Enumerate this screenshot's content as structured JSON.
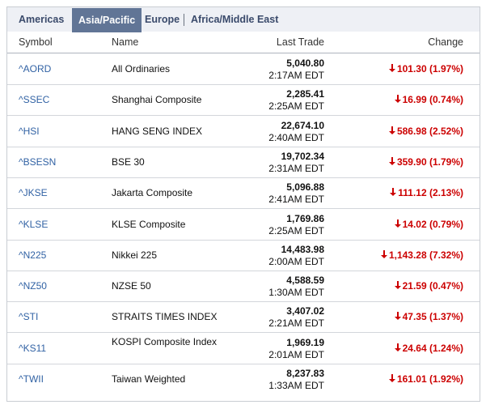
{
  "tabs": [
    {
      "label": "Americas"
    },
    {
      "label": "Asia/Pacific"
    },
    {
      "label": "Europe"
    },
    {
      "label": "Africa/Middle East"
    }
  ],
  "headers": {
    "symbol": "Symbol",
    "name": "Name",
    "last_trade": "Last Trade",
    "change": "Change"
  },
  "rows": [
    {
      "symbol": "^AORD",
      "name": "All Ordinaries",
      "price": "5,040.80",
      "time": "2:17AM EDT",
      "change": "101.30 (1.97%)"
    },
    {
      "symbol": "^SSEC",
      "name": "Shanghai Composite",
      "price": "2,285.41",
      "time": "2:25AM EDT",
      "change": "16.99 (0.74%)"
    },
    {
      "symbol": "^HSI",
      "name": "HANG SENG INDEX",
      "price": "22,674.10",
      "time": "2:40AM EDT",
      "change": "586.98 (2.52%)"
    },
    {
      "symbol": "^BSESN",
      "name": "BSE 30",
      "price": "19,702.34",
      "time": "2:31AM EDT",
      "change": "359.90 (1.79%)"
    },
    {
      "symbol": "^JKSE",
      "name": "Jakarta Composite",
      "price": "5,096.88",
      "time": "2:41AM EDT",
      "change": "111.12 (2.13%)"
    },
    {
      "symbol": "^KLSE",
      "name": "KLSE Composite",
      "price": "1,769.86",
      "time": "2:25AM EDT",
      "change": "14.02 (0.79%)"
    },
    {
      "symbol": "^N225",
      "name": "Nikkei 225",
      "price": "14,483.98",
      "time": "2:00AM EDT",
      "change": "1,143.28 (7.32%)"
    },
    {
      "symbol": "^NZ50",
      "name": "NZSE 50",
      "price": "4,588.59",
      "time": "1:30AM EDT",
      "change": "21.59 (0.47%)"
    },
    {
      "symbol": "^STI",
      "name": "STRAITS TIMES INDEX",
      "price": "3,407.02",
      "time": "2:21AM EDT",
      "change": "47.35 (1.37%)"
    },
    {
      "symbol": "^KS11",
      "name": "KOSPI Composite Index",
      "price": "1,969.19",
      "time": "2:01AM EDT",
      "change": "24.64 (1.24%)"
    },
    {
      "symbol": "^TWII",
      "name": "Taiwan Weighted",
      "price": "8,237.83",
      "time": "1:33AM EDT",
      "change": "161.01 (1.92%)"
    }
  ],
  "colors": {
    "down": "#cc0000",
    "link": "#3162a4",
    "active_tab": "#617596"
  },
  "icons": {
    "change_direction": "down-arrow-icon"
  }
}
